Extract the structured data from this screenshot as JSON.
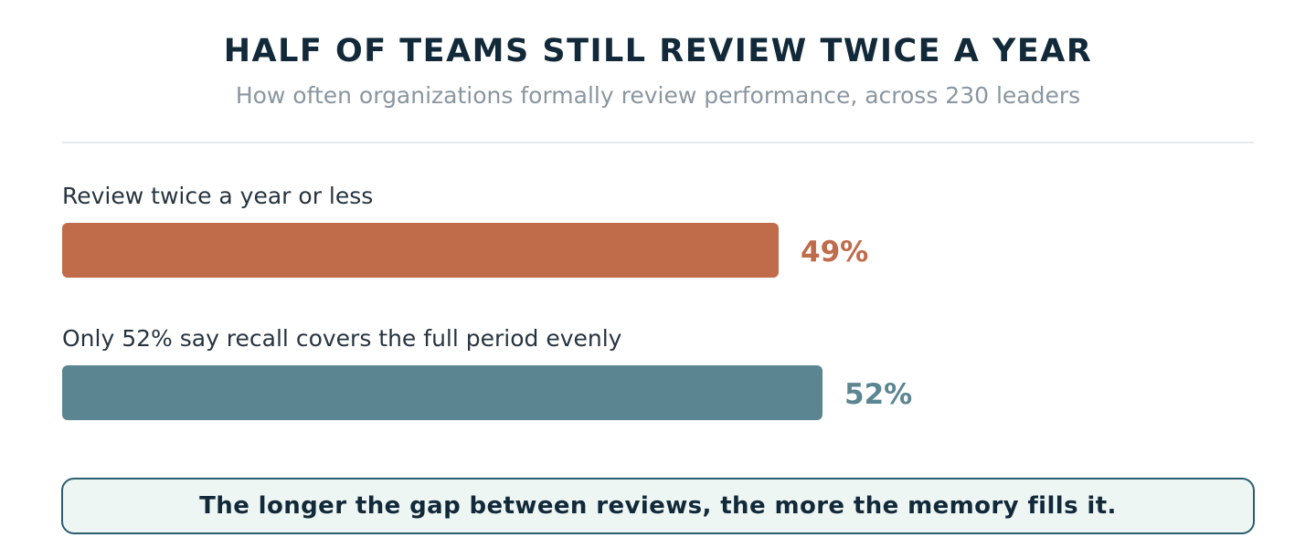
{
  "chart_data": {
    "type": "bar",
    "orientation": "horizontal",
    "title": "HALF OF TEAMS STILL REVIEW TWICE A YEAR",
    "subtitle": "How often organizations formally review performance, across 230 leaders",
    "xlim": [
      0,
      100
    ],
    "grid": false,
    "bars": [
      {
        "label": "Review twice a year or less",
        "value": 49,
        "value_label": "49%",
        "color": "#c06b4a"
      },
      {
        "label": "Only 52% say recall covers the full period evenly",
        "value": 52,
        "value_label": "52%",
        "color": "#5b8591"
      }
    ],
    "callout": "The longer the gap between reviews, the more the memory fills it."
  }
}
